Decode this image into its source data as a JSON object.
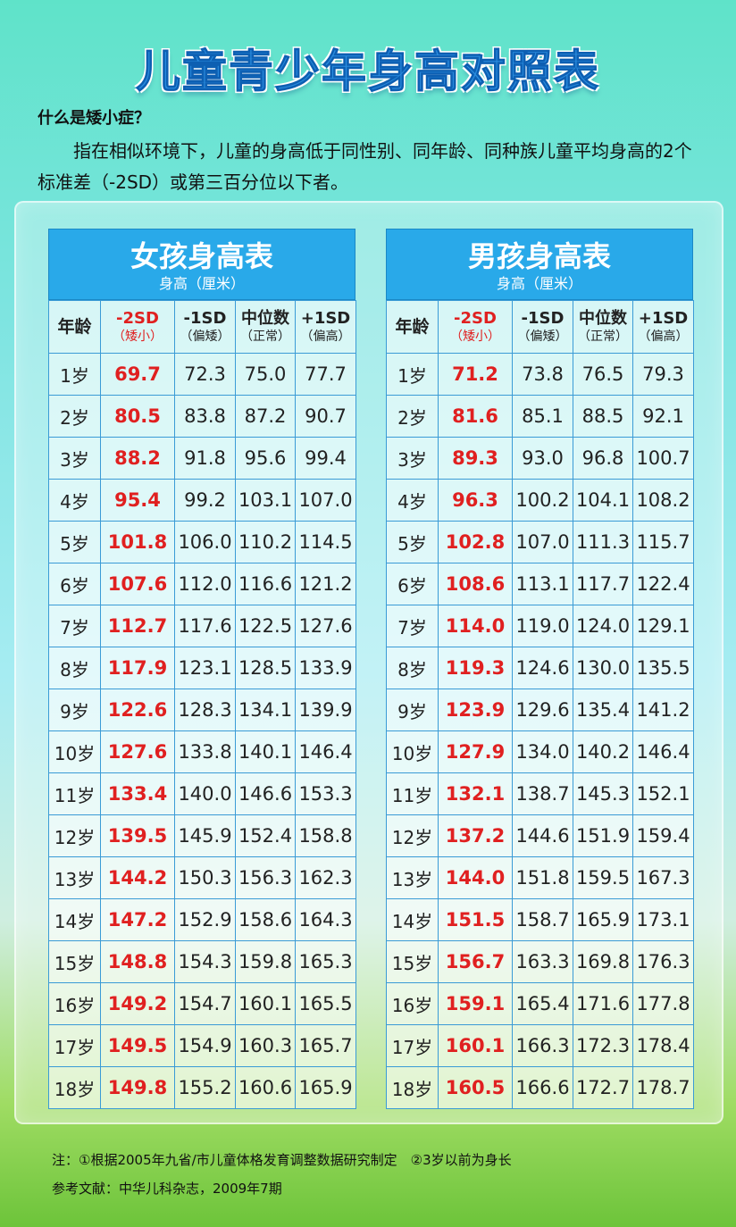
{
  "title": "儿童青少年身高对照表",
  "question": {
    "title": "什么是矮小症？",
    "body": "指在相似环境下，儿童的身高低于同性别、同年龄、同种族儿童平均身高的2个标准差（-2SD）或第三百分位以下者。"
  },
  "columns": {
    "age": "年龄",
    "minus2sd": {
      "label": "-2SD",
      "sub": "（矮小）"
    },
    "minus1sd": {
      "label": "-1SD",
      "sub": "（偏矮）"
    },
    "median": {
      "label": "中位数",
      "sub": "（正常）"
    },
    "plus1sd": {
      "label": "+1SD",
      "sub": "（偏高）"
    }
  },
  "colors": {
    "header_blue": "#29a9e9",
    "red_value": "#e02020",
    "title_blue": "#2a8de0"
  },
  "girls": {
    "title": "女孩身高表",
    "unit": "身高（厘米）",
    "rows": [
      {
        "age": "1岁",
        "m2": "69.7",
        "m1": "72.3",
        "med": "75.0",
        "p1": "77.7"
      },
      {
        "age": "2岁",
        "m2": "80.5",
        "m1": "83.8",
        "med": "87.2",
        "p1": "90.7"
      },
      {
        "age": "3岁",
        "m2": "88.2",
        "m1": "91.8",
        "med": "95.6",
        "p1": "99.4"
      },
      {
        "age": "4岁",
        "m2": "95.4",
        "m1": "99.2",
        "med": "103.1",
        "p1": "107.0"
      },
      {
        "age": "5岁",
        "m2": "101.8",
        "m1": "106.0",
        "med": "110.2",
        "p1": "114.5"
      },
      {
        "age": "6岁",
        "m2": "107.6",
        "m1": "112.0",
        "med": "116.6",
        "p1": "121.2"
      },
      {
        "age": "7岁",
        "m2": "112.7",
        "m1": "117.6",
        "med": "122.5",
        "p1": "127.6"
      },
      {
        "age": "8岁",
        "m2": "117.9",
        "m1": "123.1",
        "med": "128.5",
        "p1": "133.9"
      },
      {
        "age": "9岁",
        "m2": "122.6",
        "m1": "128.3",
        "med": "134.1",
        "p1": "139.9"
      },
      {
        "age": "10岁",
        "m2": "127.6",
        "m1": "133.8",
        "med": "140.1",
        "p1": "146.4"
      },
      {
        "age": "11岁",
        "m2": "133.4",
        "m1": "140.0",
        "med": "146.6",
        "p1": "153.3"
      },
      {
        "age": "12岁",
        "m2": "139.5",
        "m1": "145.9",
        "med": "152.4",
        "p1": "158.8"
      },
      {
        "age": "13岁",
        "m2": "144.2",
        "m1": "150.3",
        "med": "156.3",
        "p1": "162.3"
      },
      {
        "age": "14岁",
        "m2": "147.2",
        "m1": "152.9",
        "med": "158.6",
        "p1": "164.3"
      },
      {
        "age": "15岁",
        "m2": "148.8",
        "m1": "154.3",
        "med": "159.8",
        "p1": "165.3"
      },
      {
        "age": "16岁",
        "m2": "149.2",
        "m1": "154.7",
        "med": "160.1",
        "p1": "165.5"
      },
      {
        "age": "17岁",
        "m2": "149.5",
        "m1": "154.9",
        "med": "160.3",
        "p1": "165.7"
      },
      {
        "age": "18岁",
        "m2": "149.8",
        "m1": "155.2",
        "med": "160.6",
        "p1": "165.9"
      }
    ]
  },
  "boys": {
    "title": "男孩身高表",
    "unit": "身高（厘米）",
    "rows": [
      {
        "age": "1岁",
        "m2": "71.2",
        "m1": "73.8",
        "med": "76.5",
        "p1": "79.3"
      },
      {
        "age": "2岁",
        "m2": "81.6",
        "m1": "85.1",
        "med": "88.5",
        "p1": "92.1"
      },
      {
        "age": "3岁",
        "m2": "89.3",
        "m1": "93.0",
        "med": "96.8",
        "p1": "100.7"
      },
      {
        "age": "4岁",
        "m2": "96.3",
        "m1": "100.2",
        "med": "104.1",
        "p1": "108.2"
      },
      {
        "age": "5岁",
        "m2": "102.8",
        "m1": "107.0",
        "med": "111.3",
        "p1": "115.7"
      },
      {
        "age": "6岁",
        "m2": "108.6",
        "m1": "113.1",
        "med": "117.7",
        "p1": "122.4"
      },
      {
        "age": "7岁",
        "m2": "114.0",
        "m1": "119.0",
        "med": "124.0",
        "p1": "129.1"
      },
      {
        "age": "8岁",
        "m2": "119.3",
        "m1": "124.6",
        "med": "130.0",
        "p1": "135.5"
      },
      {
        "age": "9岁",
        "m2": "123.9",
        "m1": "129.6",
        "med": "135.4",
        "p1": "141.2"
      },
      {
        "age": "10岁",
        "m2": "127.9",
        "m1": "134.0",
        "med": "140.2",
        "p1": "146.4"
      },
      {
        "age": "11岁",
        "m2": "132.1",
        "m1": "138.7",
        "med": "145.3",
        "p1": "152.1"
      },
      {
        "age": "12岁",
        "m2": "137.2",
        "m1": "144.6",
        "med": "151.9",
        "p1": "159.4"
      },
      {
        "age": "13岁",
        "m2": "144.0",
        "m1": "151.8",
        "med": "159.5",
        "p1": "167.3"
      },
      {
        "age": "14岁",
        "m2": "151.5",
        "m1": "158.7",
        "med": "165.9",
        "p1": "173.1"
      },
      {
        "age": "15岁",
        "m2": "156.7",
        "m1": "163.3",
        "med": "169.8",
        "p1": "176.3"
      },
      {
        "age": "16岁",
        "m2": "159.1",
        "m1": "165.4",
        "med": "171.6",
        "p1": "177.8"
      },
      {
        "age": "17岁",
        "m2": "160.1",
        "m1": "166.3",
        "med": "172.3",
        "p1": "178.4"
      },
      {
        "age": "18岁",
        "m2": "160.5",
        "m1": "166.6",
        "med": "172.7",
        "p1": "178.7"
      }
    ]
  },
  "notes": {
    "note1": "注：①根据2005年九省/市儿童体格发育调整数据研究制定　②3岁以前为身长",
    "reference": "参考文献：中华儿科杂志，2009年7期"
  }
}
